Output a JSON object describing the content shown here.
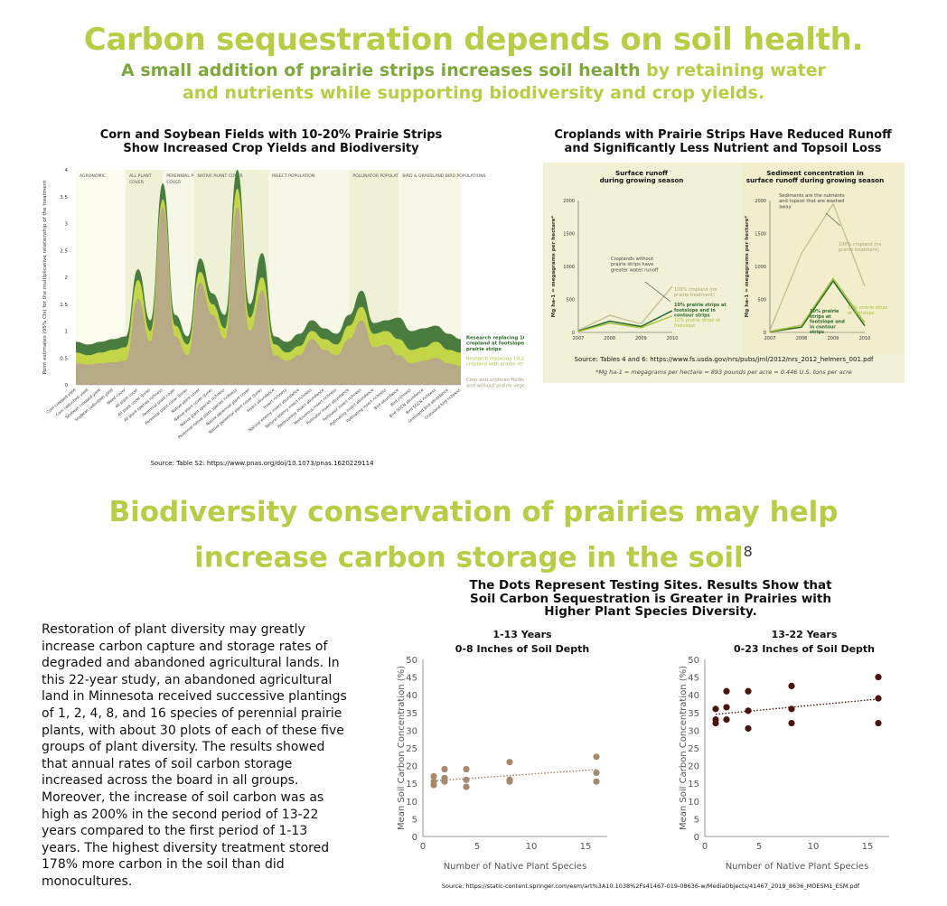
{
  "headline": "Carbon sequestration depends on soil health.",
  "subheadline": {
    "highlight": "A small addition of prairie strips increases soil health",
    "rest_line1": " by retaining water",
    "line2": "and nutrients while supporting biodiversity and crop yields."
  },
  "section2_title": {
    "line1": "Biodiversity conservation of prairies may help",
    "line2": "increase carbon storage in the soil",
    "footnote": "8"
  },
  "body_paragraph": "Restoration of plant diversity may greatly increase carbon capture and storage rates of degraded and abandoned agricultural lands. In this 22-year study, an abandoned agricultural land in Minnesota received successive plantings of 1, 2, 4, 8, and 16 species of perennial prairie plants, with about 30 plots of each of these five groups of plant diversity. The results showed that annual rates of soil carbon storage increased across the board in all groups. Moreover, the increase of soil carbon was as high as 200% in the second period of 13-22 years compared to the first period of 1-13 years. The highest diversity treatment stored 178% more carbon in the soil than did monocultures.",
  "colors": {
    "lime": "#b9cc45",
    "dark_green": "#4a7c3f",
    "tan": "#b8a987",
    "panel_bg": "#f1f1d8",
    "dot_light": "#a58a6e",
    "dot_dark": "#4b140c"
  },
  "chart1_title": [
    "Corn and Soybean Fields with 10-20% Prairie Strips",
    "Show Increased Crop Yields and Biodiversity"
  ],
  "chart1_source": "Source: Table S2: https://www.pnas.org/doi/10.1073/pnas.1620229114",
  "chart2_title": [
    "Croplands with Prairie Strips Have Reduced Runoff",
    "and Significantly Less Nutrient and Topsoil Loss"
  ],
  "chart2_source": "Source: Tables 4 and 6: https://www.fs.usda.gov/nrs/pubs/jrnl/2012/nrs_2012_helmers_001.pdf",
  "chart2_footnote": "*Mg ha-1 = megagrams per hectare = 893 pounds per acre = 0.446 U.S. tons per acre",
  "scatter_title": [
    "The Dots Represent Testing Sites. Results Show that",
    "Soil Carbon Sequestration is Greater in Prairies with",
    "Higher Plant Species Diversity."
  ],
  "scatter_source": "Source: https://static-content.springer.com/esm/art%3A10.1038%2Fs41467-019-08636-w/MediaObjects/41467_2019_8636_MOESM1_ESM.pdf",
  "chart_data": [
    {
      "type": "area",
      "ylabel": "Point estimates (95% CIs) for the multiplicative relationship of the treatment",
      "ylim": [
        0,
        4
      ],
      "yticks": [
        0,
        0.5,
        1,
        1.5,
        2,
        2.5,
        3,
        3.5,
        4
      ],
      "groups": [
        "AGRONOMIC",
        "ALL PLANT COVER",
        "PERENNIAL PLANT COVER",
        "NATIVE PLANT COVER",
        "INSECT POPULATION",
        "POLLINATOR POPULATION",
        "BIRD & GRASSLAND BIRD POPULATIONS"
      ],
      "categories": [
        "Corn cropped yield",
        "Corn (adjusted) yield",
        "Soybean cropped yield",
        "Soybean (adjusted) yield",
        "Weed cover",
        "All plant cover",
        "All plant cover (June)",
        "All plant species richness",
        "Perennial plant cover",
        "Perennial plant cover (June)",
        "Native plant cover",
        "Native plant cover (June)",
        "Native plant species richness",
        "Perennial native plant species richness",
        "Native perennial plant cover",
        "Native perennial plant cover (June)",
        "Insect abundance",
        "Insect richness",
        "Natural enemy insect abundance",
        "Natural enemy insect richness",
        "Herbivorous insect abundance",
        "Herbivorous insect richness",
        "Pollinator insect abundance",
        "Pollinator insect richness",
        "Pollinating insect abundance",
        "Pollinating insect richness",
        "Bird abundance",
        "Bird richness",
        "Bird SGCN abundance",
        "Bird SGCN richness",
        "Grassland bird abundance",
        "Grassland bird richness"
      ],
      "series": [
        {
          "name": "Research replacing 10% of cropland at footslopes with prairie strips",
          "values": [
            0.8,
            0.75,
            0.8,
            0.85,
            0.9,
            2.15,
            1.2,
            3.75,
            1.3,
            0.9,
            2.35,
            1.7,
            1.3,
            4.0,
            1.5,
            2.45,
            0.9,
            0.8,
            0.95,
            1.2,
            1.05,
            0.95,
            1.3,
            1.75,
            1.15,
            1.2,
            1.25,
            1.0,
            1.05,
            1.1,
            0.95,
            0.85
          ]
        },
        {
          "name": "Research replacing 10-20% of cropland with prairie strips",
          "values": [
            0.6,
            0.55,
            0.6,
            0.65,
            0.7,
            1.95,
            1.0,
            3.45,
            1.1,
            0.75,
            2.1,
            1.5,
            1.05,
            3.65,
            1.25,
            2.0,
            0.75,
            0.6,
            0.72,
            1.0,
            0.85,
            0.75,
            1.1,
            1.45,
            0.95,
            1.0,
            0.85,
            0.65,
            0.7,
            0.8,
            0.65,
            0.6
          ]
        },
        {
          "name": "Corn and soybean fields with and without prairie vegetation",
          "values": [
            0.4,
            0.38,
            0.4,
            0.42,
            0.45,
            1.6,
            0.8,
            3.3,
            0.9,
            0.55,
            1.9,
            1.3,
            0.85,
            3.3,
            1.0,
            1.75,
            0.55,
            0.45,
            0.55,
            0.85,
            0.65,
            0.55,
            0.85,
            1.2,
            0.7,
            0.75,
            0.55,
            0.4,
            0.45,
            0.5,
            0.4,
            0.35
          ]
        }
      ]
    },
    {
      "type": "line",
      "title": "Surface runoff during growing season",
      "ylabel": "Mg ha-1 = megagrams per hectare*",
      "ylim": [
        0,
        2000
      ],
      "yticks": [
        0,
        500,
        1000,
        1500,
        2000
      ],
      "x": [
        "2007",
        "2008",
        "2009",
        "2010"
      ],
      "series": [
        {
          "name": "100% cropland (no prairie treatment)",
          "values": [
            30,
            260,
            130,
            700
          ]
        },
        {
          "name": "10% prairie strips at footslope and in contour strips",
          "values": [
            20,
            170,
            90,
            330
          ]
        },
        {
          "name": "10% prairie strips at footslope",
          "values": [
            15,
            140,
            70,
            250
          ]
        }
      ],
      "annotation": "Croplands without prairie strips have greater water runoff"
    },
    {
      "type": "line",
      "title": "Sediment concentration in surface runoff during growing season",
      "ylabel": "Mg ha-1 = megagrams per hectare*",
      "ylim": [
        0,
        2000
      ],
      "yticks": [
        0,
        500,
        1000,
        1500,
        2000
      ],
      "x": [
        "2007",
        "2008",
        "2009",
        "2010"
      ],
      "series": [
        {
          "name": "100% cropland (no prairie treatment)",
          "values": [
            30,
            1200,
            1950,
            700
          ]
        },
        {
          "name": "10% prairie strips at footslope and in contour strips",
          "values": [
            10,
            80,
            780,
            100
          ]
        },
        {
          "name": "10% prairie strips at footslope",
          "values": [
            15,
            110,
            820,
            150
          ]
        }
      ],
      "annotation": "Sediments are the nutrients and topsoil that are washed away"
    },
    {
      "type": "scatter",
      "title": "1-13 Years",
      "subtitle": "0-8 Inches of Soil Depth",
      "xlabel": "Number of Native Plant Species",
      "ylabel": "Mean Soil Carbon Concentration (%)",
      "xlim": [
        0,
        17
      ],
      "ylim": [
        0,
        50
      ],
      "xticks": [
        0,
        5,
        10,
        15
      ],
      "yticks": [
        0,
        5,
        10,
        15,
        20,
        25,
        30,
        35,
        40,
        45,
        50
      ],
      "points": [
        [
          1,
          17
        ],
        [
          1,
          14.5
        ],
        [
          1,
          15.5
        ],
        [
          2,
          19
        ],
        [
          2,
          15.5
        ],
        [
          2,
          16.5
        ],
        [
          4,
          19
        ],
        [
          4,
          14
        ],
        [
          4,
          16
        ],
        [
          8,
          21
        ],
        [
          8,
          16
        ],
        [
          8,
          15.5
        ],
        [
          16,
          22.5
        ],
        [
          16,
          18
        ],
        [
          16,
          15.5
        ]
      ],
      "trend": [
        [
          1,
          15.7
        ],
        [
          16,
          18.9
        ]
      ]
    },
    {
      "type": "scatter",
      "title": "13-22 Years",
      "subtitle": "0-23 Inches of Soil Depth",
      "xlabel": "Number of Native Plant Species",
      "ylabel": "Mean Soil Carbon Concentration (%)",
      "xlim": [
        0,
        17
      ],
      "ylim": [
        0,
        50
      ],
      "xticks": [
        0,
        5,
        10,
        15
      ],
      "yticks": [
        0,
        5,
        10,
        15,
        20,
        25,
        30,
        35,
        40,
        45,
        50
      ],
      "points": [
        [
          1,
          36
        ],
        [
          1,
          32
        ],
        [
          1,
          33
        ],
        [
          2,
          41
        ],
        [
          2,
          33
        ],
        [
          2,
          36.5
        ],
        [
          4,
          41
        ],
        [
          4,
          30.5
        ],
        [
          4,
          35.5
        ],
        [
          8,
          42.5
        ],
        [
          8,
          36
        ],
        [
          8,
          32
        ],
        [
          16,
          45
        ],
        [
          16,
          39
        ],
        [
          16,
          32
        ]
      ],
      "trend": [
        [
          1,
          34.5
        ],
        [
          16,
          38.8
        ]
      ]
    }
  ]
}
